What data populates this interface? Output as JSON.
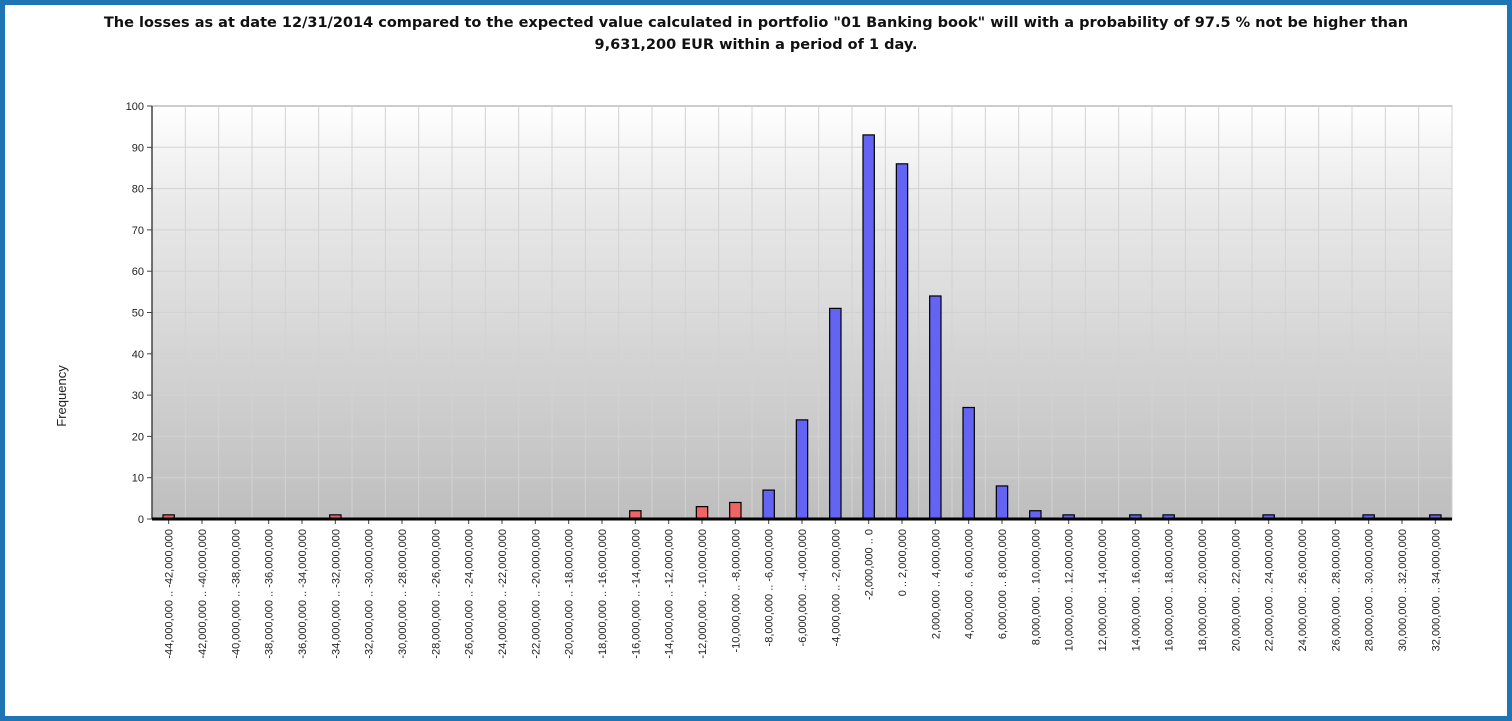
{
  "chart_data": {
    "type": "bar",
    "title_line1": "The losses as at date 12/31/2014 compared to the expected value calculated in portfolio \"01 Banking book\" will with a probability of 97.5 % not be higher than",
    "title_line2": "9,631,200 EUR within a period of 1 day.",
    "xlabel": "",
    "ylabel": "Frequency",
    "ylim": [
      0,
      100
    ],
    "yticks": [
      0,
      10,
      20,
      30,
      40,
      50,
      60,
      70,
      80,
      90,
      100
    ],
    "grid": true,
    "categories": [
      "-44,000,000 .. -42,000,000",
      "-42,000,000 .. -40,000,000",
      "-40,000,000 .. -38,000,000",
      "-38,000,000 .. -36,000,000",
      "-36,000,000 .. -34,000,000",
      "-34,000,000 .. -32,000,000",
      "-32,000,000 .. -30,000,000",
      "-30,000,000 .. -28,000,000",
      "-28,000,000 .. -26,000,000",
      "-26,000,000 .. -24,000,000",
      "-24,000,000 .. -22,000,000",
      "-22,000,000 .. -20,000,000",
      "-20,000,000 .. -18,000,000",
      "-18,000,000 .. -16,000,000",
      "-16,000,000 .. -14,000,000",
      "-14,000,000 .. -12,000,000",
      "-12,000,000 .. -10,000,000",
      "-10,000,000 .. -8,000,000",
      "-8,000,000 .. -6,000,000",
      "-6,000,000 .. -4,000,000",
      "-4,000,000 .. -2,000,000",
      "-2,000,000 .. 0",
      "0 .. 2,000,000",
      "2,000,000 .. 4,000,000",
      "4,000,000 .. 6,000,000",
      "6,000,000 .. 8,000,000",
      "8,000,000 .. 10,000,000",
      "10,000,000 .. 12,000,000",
      "12,000,000 .. 14,000,000",
      "14,000,000 .. 16,000,000",
      "16,000,000 .. 18,000,000",
      "18,000,000 .. 20,000,000",
      "20,000,000 .. 22,000,000",
      "22,000,000 .. 24,000,000",
      "24,000,000 .. 26,000,000",
      "26,000,000 .. 28,000,000",
      "28,000,000 .. 30,000,000",
      "30,000,000 .. 32,000,000",
      "32,000,000 .. 34,000,000"
    ],
    "values": [
      1,
      0,
      0,
      0,
      0,
      1,
      0,
      0,
      0,
      0,
      0,
      0,
      0,
      0,
      2,
      0,
      3,
      4,
      7,
      24,
      51,
      93,
      86,
      54,
      27,
      8,
      2,
      1,
      0,
      1,
      1,
      0,
      0,
      1,
      0,
      0,
      1,
      0,
      1
    ],
    "loss_tail_categories": 18,
    "colors": {
      "loss_tail": "#f06464",
      "normal": "#6363f4",
      "frame": "#1f74b3",
      "bar_outline": "#000000"
    }
  }
}
